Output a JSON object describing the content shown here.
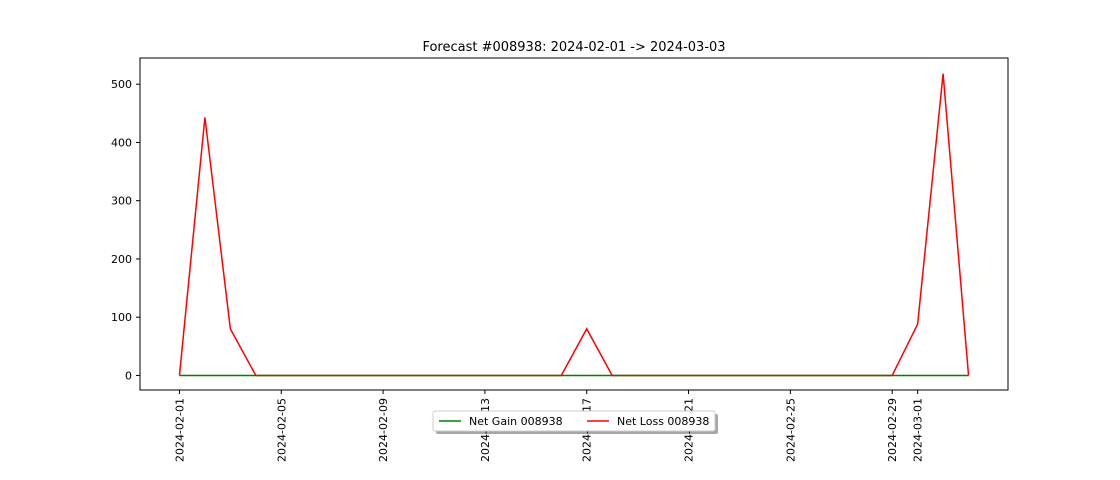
{
  "chart_data": {
    "type": "line",
    "title": "Forecast #008938: 2024-02-01 -> 2024-03-03",
    "xlabel": "",
    "ylabel": "",
    "x": [
      "2024-02-01",
      "2024-02-02",
      "2024-02-03",
      "2024-02-04",
      "2024-02-05",
      "2024-02-06",
      "2024-02-07",
      "2024-02-08",
      "2024-02-09",
      "2024-02-10",
      "2024-02-11",
      "2024-02-12",
      "2024-02-13",
      "2024-02-14",
      "2024-02-15",
      "2024-02-16",
      "2024-02-17",
      "2024-02-18",
      "2024-02-19",
      "2024-02-20",
      "2024-02-21",
      "2024-02-22",
      "2024-02-23",
      "2024-02-24",
      "2024-02-25",
      "2024-02-26",
      "2024-02-27",
      "2024-02-28",
      "2024-02-29",
      "2024-03-01",
      "2024-03-02",
      "2024-03-03"
    ],
    "xticks": [
      "2024-02-01",
      "2024-02-05",
      "2024-02-09",
      "2024-02-13",
      "2024-02-17",
      "2024-02-21",
      "2024-02-25",
      "2024-02-29",
      "2024-03-01"
    ],
    "yticks": [
      0,
      100,
      200,
      300,
      400,
      500
    ],
    "ylim": [
      -25,
      545
    ],
    "grid": false,
    "legend_position": "bottom-center",
    "series": [
      {
        "name": "Net Gain 008938",
        "color": "#008000",
        "values": [
          0,
          0,
          0,
          0,
          0,
          0,
          0,
          0,
          0,
          0,
          0,
          0,
          0,
          0,
          0,
          0,
          0,
          0,
          0,
          0,
          0,
          0,
          0,
          0,
          0,
          0,
          0,
          0,
          0,
          0,
          0,
          0
        ]
      },
      {
        "name": "Net Loss 008938",
        "color": "#ff0000",
        "values": [
          0,
          443,
          80,
          0,
          0,
          0,
          0,
          0,
          0,
          0,
          0,
          0,
          0,
          0,
          0,
          0,
          80,
          0,
          0,
          0,
          0,
          0,
          0,
          0,
          0,
          0,
          0,
          0,
          0,
          88,
          518,
          0
        ]
      }
    ]
  }
}
